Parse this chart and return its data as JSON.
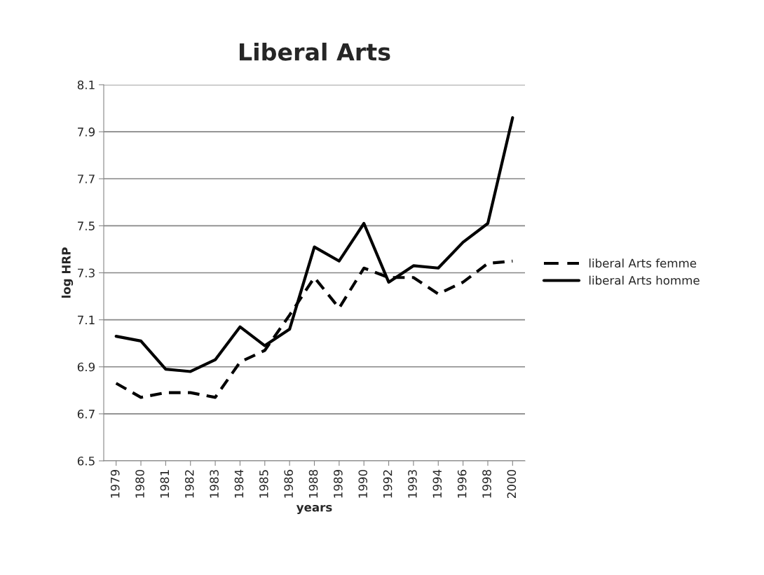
{
  "chart_data": {
    "type": "line",
    "title": "Liberal Arts",
    "xlabel": "years",
    "ylabel": "log HRP",
    "categories": [
      "1979",
      "1980",
      "1981",
      "1982",
      "1983",
      "1984",
      "1985",
      "1986",
      "1988",
      "1989",
      "1990",
      "1992",
      "1993",
      "1994",
      "1996",
      "1998",
      "2000"
    ],
    "series": [
      {
        "name": "liberal Arts femme",
        "color": "#000000",
        "line_style": "dashed",
        "values": [
          6.83,
          6.77,
          6.79,
          6.79,
          6.77,
          6.92,
          6.97,
          7.12,
          7.28,
          7.15,
          7.32,
          7.28,
          7.28,
          7.21,
          7.26,
          7.34,
          7.35
        ]
      },
      {
        "name": "liberal Arts homme",
        "color": "#000000",
        "line_style": "solid",
        "values": [
          7.03,
          7.01,
          6.89,
          6.88,
          6.93,
          7.07,
          6.99,
          7.06,
          7.41,
          7.35,
          7.51,
          7.26,
          7.33,
          7.32,
          7.43,
          7.51,
          7.96
        ]
      }
    ],
    "ylim": [
      6.5,
      8.1
    ],
    "yticks": [
      {
        "value": 6.5,
        "label": "6.5"
      },
      {
        "value": 6.7,
        "label": "6.7"
      },
      {
        "value": 6.9,
        "label": "6.9"
      },
      {
        "value": 7.1,
        "label": "7.1"
      },
      {
        "value": 7.3,
        "label": "7.3"
      },
      {
        "value": 7.5,
        "label": "7.5"
      },
      {
        "value": 7.7,
        "label": "7.7"
      },
      {
        "value": 7.9,
        "label": "7.9"
      },
      {
        "value": 8.1,
        "label": "8.1"
      }
    ],
    "grid": "y",
    "legend": "right",
    "marker": "none"
  }
}
